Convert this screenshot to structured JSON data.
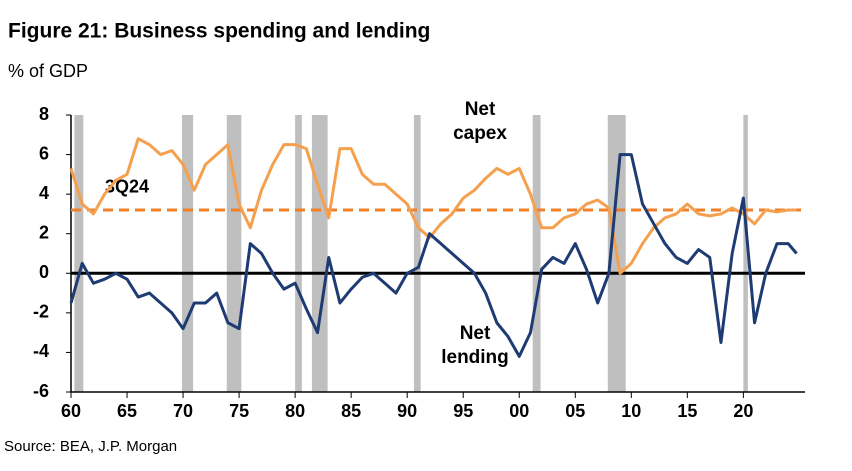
{
  "chart_data": {
    "type": "line",
    "title": "Figure 21: Business spending and lending",
    "subtitle": "% of GDP",
    "source": "Source: BEA, J.P. Morgan",
    "x": [
      1960,
      1961,
      1962,
      1963,
      1964,
      1965,
      1966,
      1967,
      1968,
      1969,
      1970,
      1971,
      1972,
      1973,
      1974,
      1975,
      1976,
      1977,
      1978,
      1979,
      1980,
      1981,
      1982,
      1983,
      1984,
      1985,
      1986,
      1987,
      1988,
      1989,
      1990,
      1991,
      1992,
      1993,
      1994,
      1995,
      1996,
      1997,
      1998,
      1999,
      2000,
      2001,
      2002,
      2003,
      2004,
      2005,
      2006,
      2007,
      2008,
      2009,
      2010,
      2011,
      2012,
      2013,
      2014,
      2015,
      2016,
      2017,
      2018,
      2019,
      2020,
      2021,
      2022,
      2023,
      2024,
      2024.75
    ],
    "series": [
      {
        "name": "Net capex",
        "color": "#f5a04e",
        "values": [
          5.3,
          3.5,
          3.0,
          4.0,
          4.7,
          5.0,
          6.8,
          6.5,
          6.0,
          6.2,
          5.5,
          4.2,
          5.5,
          6.0,
          6.5,
          3.5,
          2.3,
          4.2,
          5.5,
          6.5,
          6.5,
          6.3,
          4.5,
          2.8,
          6.3,
          6.3,
          5.0,
          4.5,
          4.5,
          4.0,
          3.5,
          2.3,
          1.8,
          2.5,
          3.0,
          3.8,
          4.2,
          4.8,
          5.3,
          5.0,
          5.3,
          4.0,
          2.3,
          2.3,
          2.8,
          3.0,
          3.5,
          3.7,
          3.3,
          0.0,
          0.5,
          1.5,
          2.3,
          2.8,
          3.0,
          3.5,
          3.0,
          2.9,
          3.0,
          3.3,
          3.0,
          2.5,
          3.2,
          3.1,
          3.2,
          3.2
        ]
      },
      {
        "name": "Net lending",
        "color": "#1f3b73",
        "values": [
          -1.5,
          0.5,
          -0.5,
          -0.3,
          0.0,
          -0.3,
          -1.2,
          -1.0,
          -1.5,
          -2.0,
          -2.8,
          -1.5,
          -1.5,
          -1.0,
          -2.5,
          -2.8,
          1.5,
          1.0,
          0.0,
          -0.8,
          -0.5,
          -1.8,
          -3.0,
          0.8,
          -1.5,
          -0.8,
          -0.2,
          0.0,
          -0.5,
          -1.0,
          0.0,
          0.3,
          2.0,
          1.5,
          1.0,
          0.5,
          0.0,
          -1.0,
          -2.5,
          -3.2,
          -4.2,
          -3.0,
          0.2,
          0.8,
          0.5,
          1.5,
          0.2,
          -1.5,
          0.0,
          6.0,
          6.0,
          3.5,
          2.5,
          1.5,
          0.8,
          0.5,
          1.2,
          0.8,
          -3.5,
          1.0,
          3.8,
          -2.5,
          0.0,
          1.5,
          1.5,
          1.0
        ]
      }
    ],
    "reference_line": {
      "value": 3.2,
      "label": "3Q24",
      "color": "#f07f2a"
    },
    "recessions": [
      [
        1960.3,
        1961.1
      ],
      [
        1969.9,
        1970.9
      ],
      [
        1973.9,
        1975.2
      ],
      [
        1980.0,
        1980.6
      ],
      [
        1981.5,
        1982.9
      ],
      [
        1990.6,
        1991.2
      ],
      [
        2001.2,
        2001.9
      ],
      [
        2007.9,
        2009.5
      ],
      [
        2020.0,
        2020.4
      ]
    ],
    "recession_color": "#bfbfbf",
    "xlim": [
      1960,
      2025.5
    ],
    "xticks": [
      {
        "value": 1960,
        "label": "60"
      },
      {
        "value": 1965,
        "label": "65"
      },
      {
        "value": 1970,
        "label": "70"
      },
      {
        "value": 1975,
        "label": "75"
      },
      {
        "value": 1980,
        "label": "80"
      },
      {
        "value": 1985,
        "label": "85"
      },
      {
        "value": 1990,
        "label": "90"
      },
      {
        "value": 1995,
        "label": "95"
      },
      {
        "value": 2000,
        "label": "00"
      },
      {
        "value": 2005,
        "label": "05"
      },
      {
        "value": 2010,
        "label": "10"
      },
      {
        "value": 2015,
        "label": "15"
      },
      {
        "value": 2020,
        "label": "20"
      }
    ],
    "ylim": [
      -6,
      8
    ],
    "yticks": [
      -6,
      -4,
      -2,
      0,
      2,
      4,
      6,
      8
    ],
    "grid": false
  }
}
